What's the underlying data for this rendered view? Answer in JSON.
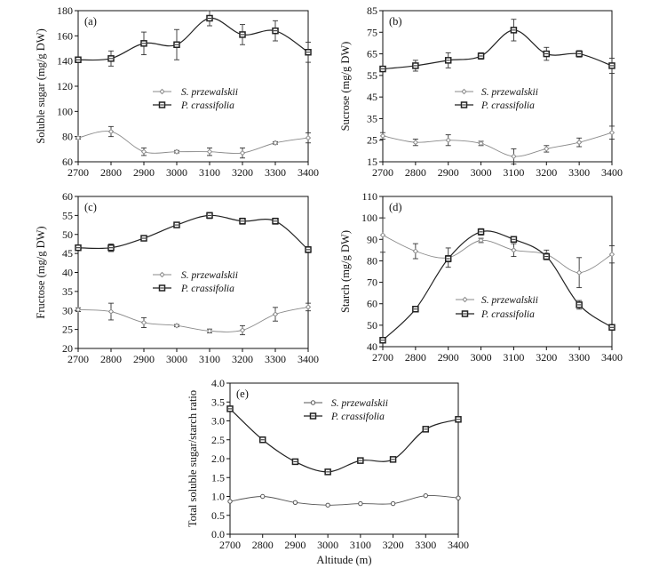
{
  "chart_data": [
    {
      "type": "line",
      "panel_label": "(a)",
      "ylabel": "Soluble sugar (mg/g DW)",
      "xlabel": "",
      "x": [
        2700,
        2800,
        2900,
        3000,
        3100,
        3200,
        3300,
        3400
      ],
      "xlim": [
        2700,
        3400
      ],
      "ylim": [
        60,
        180
      ],
      "yticks": [
        60,
        80,
        100,
        120,
        140,
        160,
        180
      ],
      "legend_placement": "center",
      "series": [
        {
          "name": "S. przewalskii",
          "color": "#8a8a8a",
          "marker": "open-diamond",
          "values": [
            79,
            84,
            68,
            68,
            68,
            67,
            75,
            79
          ],
          "errors": [
            1,
            4,
            3,
            1,
            3,
            4,
            1,
            4
          ]
        },
        {
          "name": "P. crassifolia",
          "color": "#222222",
          "marker": "open-square",
          "values": [
            141,
            142,
            154,
            153,
            174,
            161,
            164,
            147
          ],
          "errors": [
            1,
            6,
            9,
            12,
            6,
            8,
            8,
            8
          ]
        }
      ]
    },
    {
      "type": "line",
      "panel_label": "(b)",
      "ylabel": "Sucrose  (mg/g DW)",
      "xlabel": "",
      "x": [
        2700,
        2800,
        2900,
        3000,
        3100,
        3200,
        3300,
        3400
      ],
      "xlim": [
        2700,
        3400
      ],
      "ylim": [
        15,
        85
      ],
      "yticks": [
        15,
        25,
        35,
        45,
        55,
        65,
        75,
        85
      ],
      "legend_placement": "center",
      "series": [
        {
          "name": "S. przewalskii",
          "color": "#8a8a8a",
          "marker": "open-diamond",
          "values": [
            27,
            24,
            25,
            23.5,
            17.5,
            21,
            24,
            28.5
          ],
          "errors": [
            1.5,
            1.5,
            2.5,
            1,
            3.5,
            1.5,
            2,
            3
          ]
        },
        {
          "name": "P. crassifolia",
          "color": "#222222",
          "marker": "open-square",
          "values": [
            58,
            59.5,
            62,
            64,
            76,
            65,
            65,
            59.5
          ],
          "errors": [
            0.5,
            2.5,
            3.5,
            1.5,
            5,
            3,
            1.5,
            3.5
          ]
        }
      ]
    },
    {
      "type": "line",
      "panel_label": "(c)",
      "ylabel": "Fructose (mg/g DW)",
      "xlabel": "",
      "x": [
        2700,
        2800,
        2900,
        3000,
        3100,
        3200,
        3300,
        3400
      ],
      "xlim": [
        2700,
        3400
      ],
      "ylim": [
        20,
        60
      ],
      "yticks": [
        20,
        25,
        30,
        35,
        40,
        45,
        50,
        55,
        60
      ],
      "legend_placement": "center",
      "series": [
        {
          "name": "S. przewalskii",
          "color": "#8a8a8a",
          "marker": "open-diamond",
          "values": [
            30.2,
            29.7,
            26.8,
            26,
            24.6,
            24.8,
            29,
            30.9
          ],
          "errors": [
            0.5,
            2.2,
            1.3,
            0.3,
            0.5,
            1.2,
            1.8,
            1
          ]
        },
        {
          "name": "P. crassifolia",
          "color": "#222222",
          "marker": "open-square",
          "values": [
            46.5,
            46.5,
            49,
            52.5,
            55,
            53.5,
            53.5,
            46
          ],
          "errors": [
            0.2,
            1,
            0.2,
            0.3,
            0.8,
            0.8,
            0.8,
            0.8
          ]
        }
      ]
    },
    {
      "type": "line",
      "panel_label": "(d)",
      "ylabel": "Starch  (mg/g DW)",
      "xlabel": "",
      "x": [
        2700,
        2800,
        2900,
        3000,
        3100,
        3200,
        3300,
        3400
      ],
      "xlim": [
        2700,
        3400
      ],
      "ylim": [
        40,
        110
      ],
      "yticks": [
        40,
        50,
        60,
        70,
        80,
        90,
        100,
        110
      ],
      "legend_placement": "lower-center",
      "series": [
        {
          "name": "S. przewalskii",
          "color": "#8a8a8a",
          "marker": "open-diamond",
          "values": [
            92,
            84.5,
            81.5,
            89.5,
            85,
            83,
            74.5,
            83
          ],
          "errors": [
            8,
            3.5,
            4.5,
            1,
            3,
            2,
            7,
            4
          ]
        },
        {
          "name": "P. crassifolia",
          "color": "#222222",
          "marker": "open-square",
          "values": [
            43,
            57.5,
            81,
            93.5,
            90,
            82,
            59.5,
            49
          ],
          "errors": [
            0.5,
            1,
            1.5,
            1.5,
            1,
            1.5,
            2,
            0.5
          ]
        }
      ]
    },
    {
      "type": "line",
      "panel_label": "(e)",
      "ylabel": "Total soluble sugar/starch ratio",
      "xlabel": "Altitude (m)",
      "x": [
        2700,
        2800,
        2900,
        3000,
        3100,
        3200,
        3300,
        3400
      ],
      "xlim": [
        2700,
        3400
      ],
      "ylim": [
        0,
        4
      ],
      "yticks": [
        "0.0",
        "0.5",
        "1.0",
        "1.5",
        "2.0",
        "2.5",
        "3.0",
        "3.5",
        "4.0"
      ],
      "legend_placement": "top-center",
      "series": [
        {
          "name": "S. przewalskii",
          "color": "#555555",
          "marker": "open-circle",
          "values": [
            0.87,
            1.0,
            0.84,
            0.77,
            0.81,
            0.81,
            1.02,
            0.96
          ],
          "errors": []
        },
        {
          "name": "P. crassifolia",
          "color": "#222222",
          "marker": "open-square",
          "values": [
            3.32,
            2.5,
            1.92,
            1.65,
            1.95,
            1.98,
            2.78,
            3.04
          ],
          "errors": []
        }
      ]
    }
  ]
}
